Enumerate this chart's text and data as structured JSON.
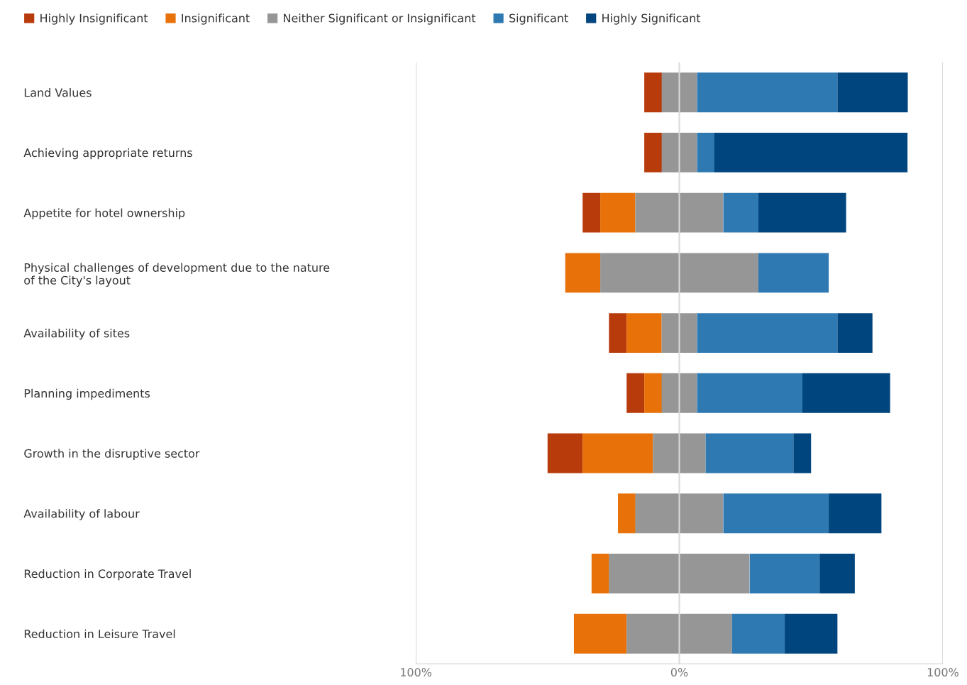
{
  "chart_data": {
    "type": "bar",
    "orientation": "horizontal",
    "categories": [
      "Land Values",
      "Achieving appropriate returns",
      "Appetite for hotel ownership",
      "Physical challenges of development due to the nature\nof the City's layout",
      "Availability of sites",
      "Planning impediments",
      "Growth in the disruptive sector",
      "Availability of labour",
      "Reduction in Corporate Travel",
      "Reduction in Leisure Travel"
    ],
    "series": [
      {
        "name": "Highly Insignificant",
        "color": "#b83b0b",
        "values": [
          6.7,
          6.7,
          6.7,
          null,
          6.7,
          6.7,
          13.3,
          null,
          null,
          null
        ],
        "base": [
          -13.3,
          -13.3,
          -36.7,
          null,
          -26.7,
          -20,
          -50,
          null,
          null,
          null
        ]
      },
      {
        "name": "Insignificant",
        "color": "#e8710a",
        "values": [
          null,
          null,
          13.3,
          13.3,
          13.3,
          6.7,
          26.7,
          6.7,
          6.7,
          20
        ],
        "base": [
          null,
          null,
          -30,
          -43.3,
          -20,
          -13.3,
          -36.7,
          -23.3,
          -33.3,
          -40
        ]
      },
      {
        "name": "Neither Significant or Insignificant",
        "color": "#969696",
        "values": [
          13.3,
          13.3,
          33.3,
          60,
          13.3,
          13.3,
          20,
          33.3,
          53.3,
          40
        ],
        "base": [
          -6.7,
          -6.7,
          -16.7,
          -30,
          -6.7,
          -6.7,
          -10,
          -16.7,
          -26.7,
          -20
        ]
      },
      {
        "name": "Significant",
        "color": "#2e79b2",
        "values": [
          53.3,
          6.7,
          13.3,
          26.7,
          53.3,
          40,
          33.3,
          40,
          26.7,
          20
        ],
        "base": [
          6.7,
          6.7,
          16.7,
          30,
          6.7,
          6.7,
          10,
          16.7,
          26.7,
          20
        ]
      },
      {
        "name": "Highly Significant",
        "color": "#00457e",
        "values": [
          26.7,
          73.3,
          33.3,
          null,
          13.3,
          33.3,
          6.7,
          20,
          13.3,
          20
        ],
        "base": [
          60,
          13.3,
          30,
          null,
          60,
          46.7,
          43.3,
          56.7,
          53.3,
          40
        ]
      }
    ],
    "xlim": [
      -100,
      100
    ],
    "xticks": [
      {
        "value": -100,
        "label": "100%"
      },
      {
        "value": 0,
        "label": "0%"
      },
      {
        "value": 100,
        "label": "100%"
      }
    ],
    "grid": "x",
    "legend": "top left"
  }
}
